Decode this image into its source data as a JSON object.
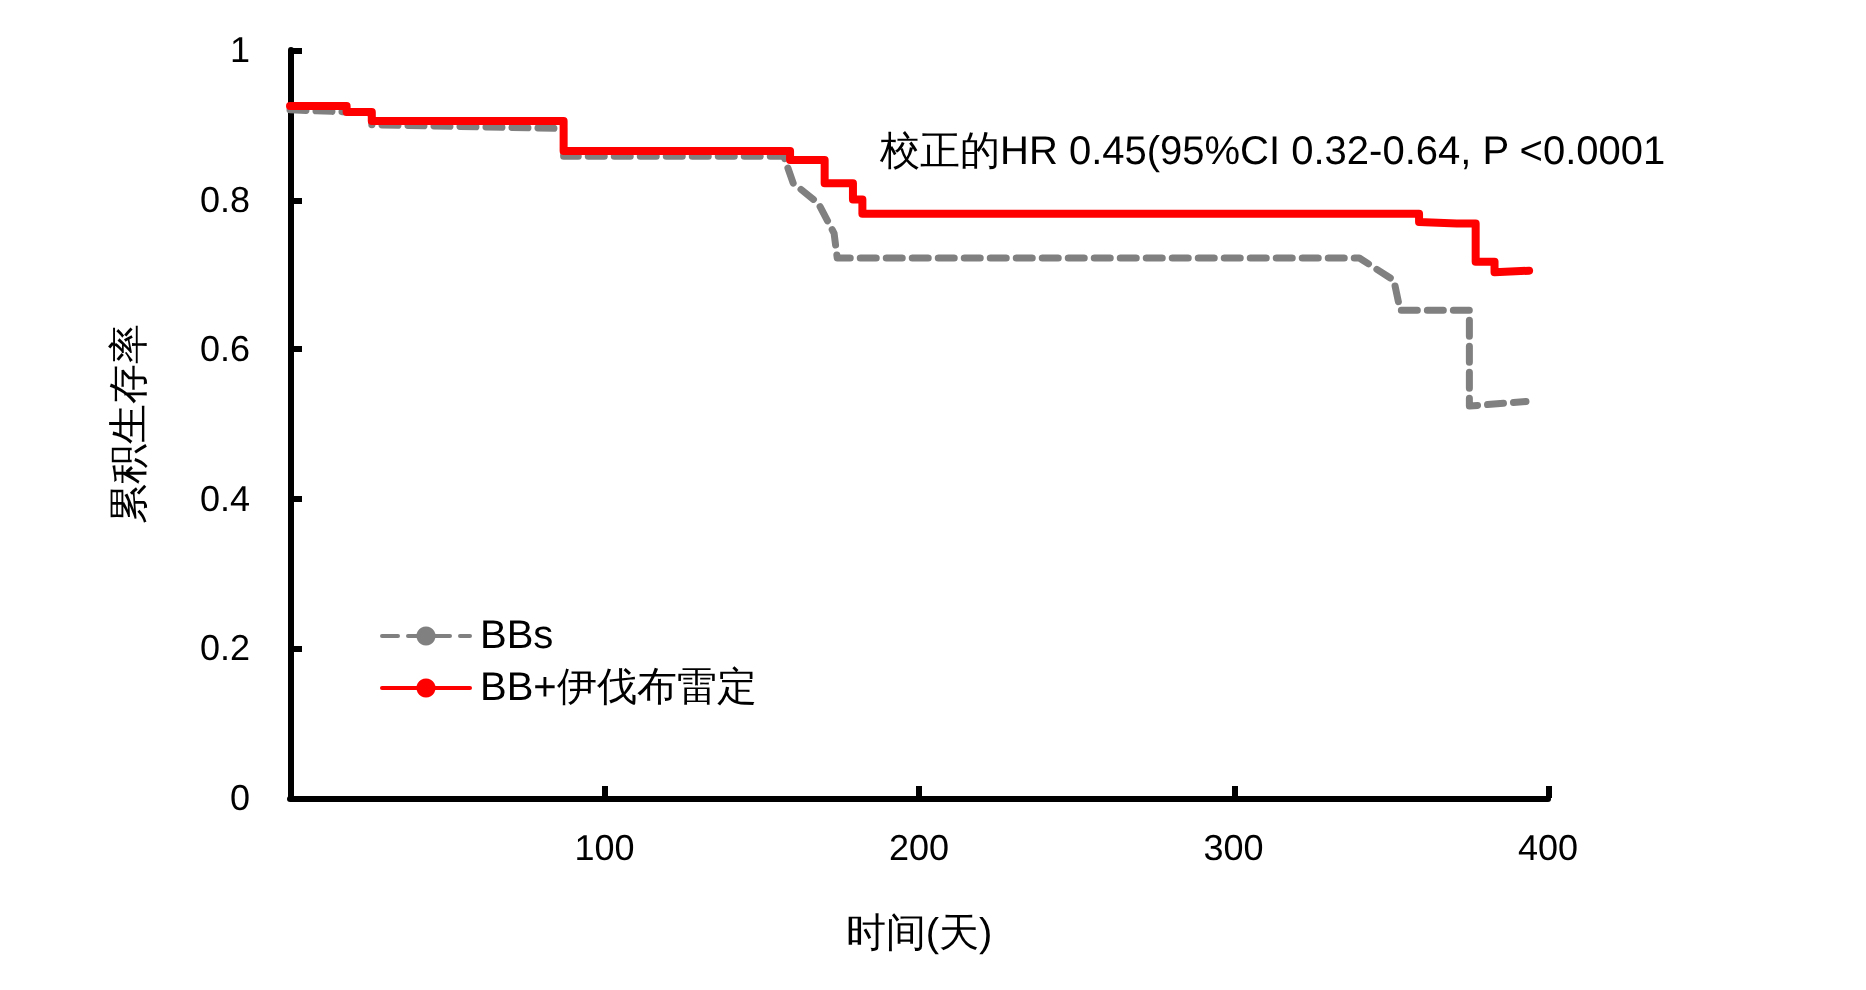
{
  "chart_data": {
    "type": "line",
    "xlabel": "时间(天)",
    "ylabel": "累积生存率",
    "annotations": [
      "校正的HR 0.45(95%CI 0.32-0.64, P <0.0001"
    ],
    "xlim": [
      0,
      400
    ],
    "xticks": [
      100,
      200,
      300,
      400
    ],
    "ylim": [
      0,
      1
    ],
    "yticks": [
      0,
      0.2,
      0.4,
      0.6,
      0.8,
      1
    ],
    "grid": false,
    "legend": "bottom left",
    "marker": "none",
    "series": [
      {
        "name": "BBs",
        "color": "#808080",
        "line_style": "dashed",
        "x": [
          0,
          26,
          26,
          87,
          87,
          157,
          160,
          168,
          173,
          174,
          340,
          351,
          353,
          375,
          375,
          393
        ],
        "values": [
          0.92,
          0.916,
          0.9,
          0.895,
          0.858,
          0.858,
          0.822,
          0.795,
          0.755,
          0.722,
          0.722,
          0.692,
          0.652,
          0.652,
          0.524,
          0.53
        ]
      },
      {
        "name": "BB+伊伐布雷定",
        "color": "#ff0000",
        "line_style": "solid",
        "x": [
          0,
          18,
          18,
          26,
          26,
          87,
          87,
          159,
          159,
          170,
          170,
          179,
          179,
          182,
          182,
          359,
          359,
          371,
          377,
          377,
          383,
          383,
          394
        ],
        "values": [
          0.925,
          0.925,
          0.917,
          0.917,
          0.905,
          0.905,
          0.865,
          0.865,
          0.853,
          0.853,
          0.822,
          0.822,
          0.8,
          0.8,
          0.781,
          0.781,
          0.77,
          0.768,
          0.768,
          0.717,
          0.717,
          0.703,
          0.705
        ]
      }
    ]
  }
}
